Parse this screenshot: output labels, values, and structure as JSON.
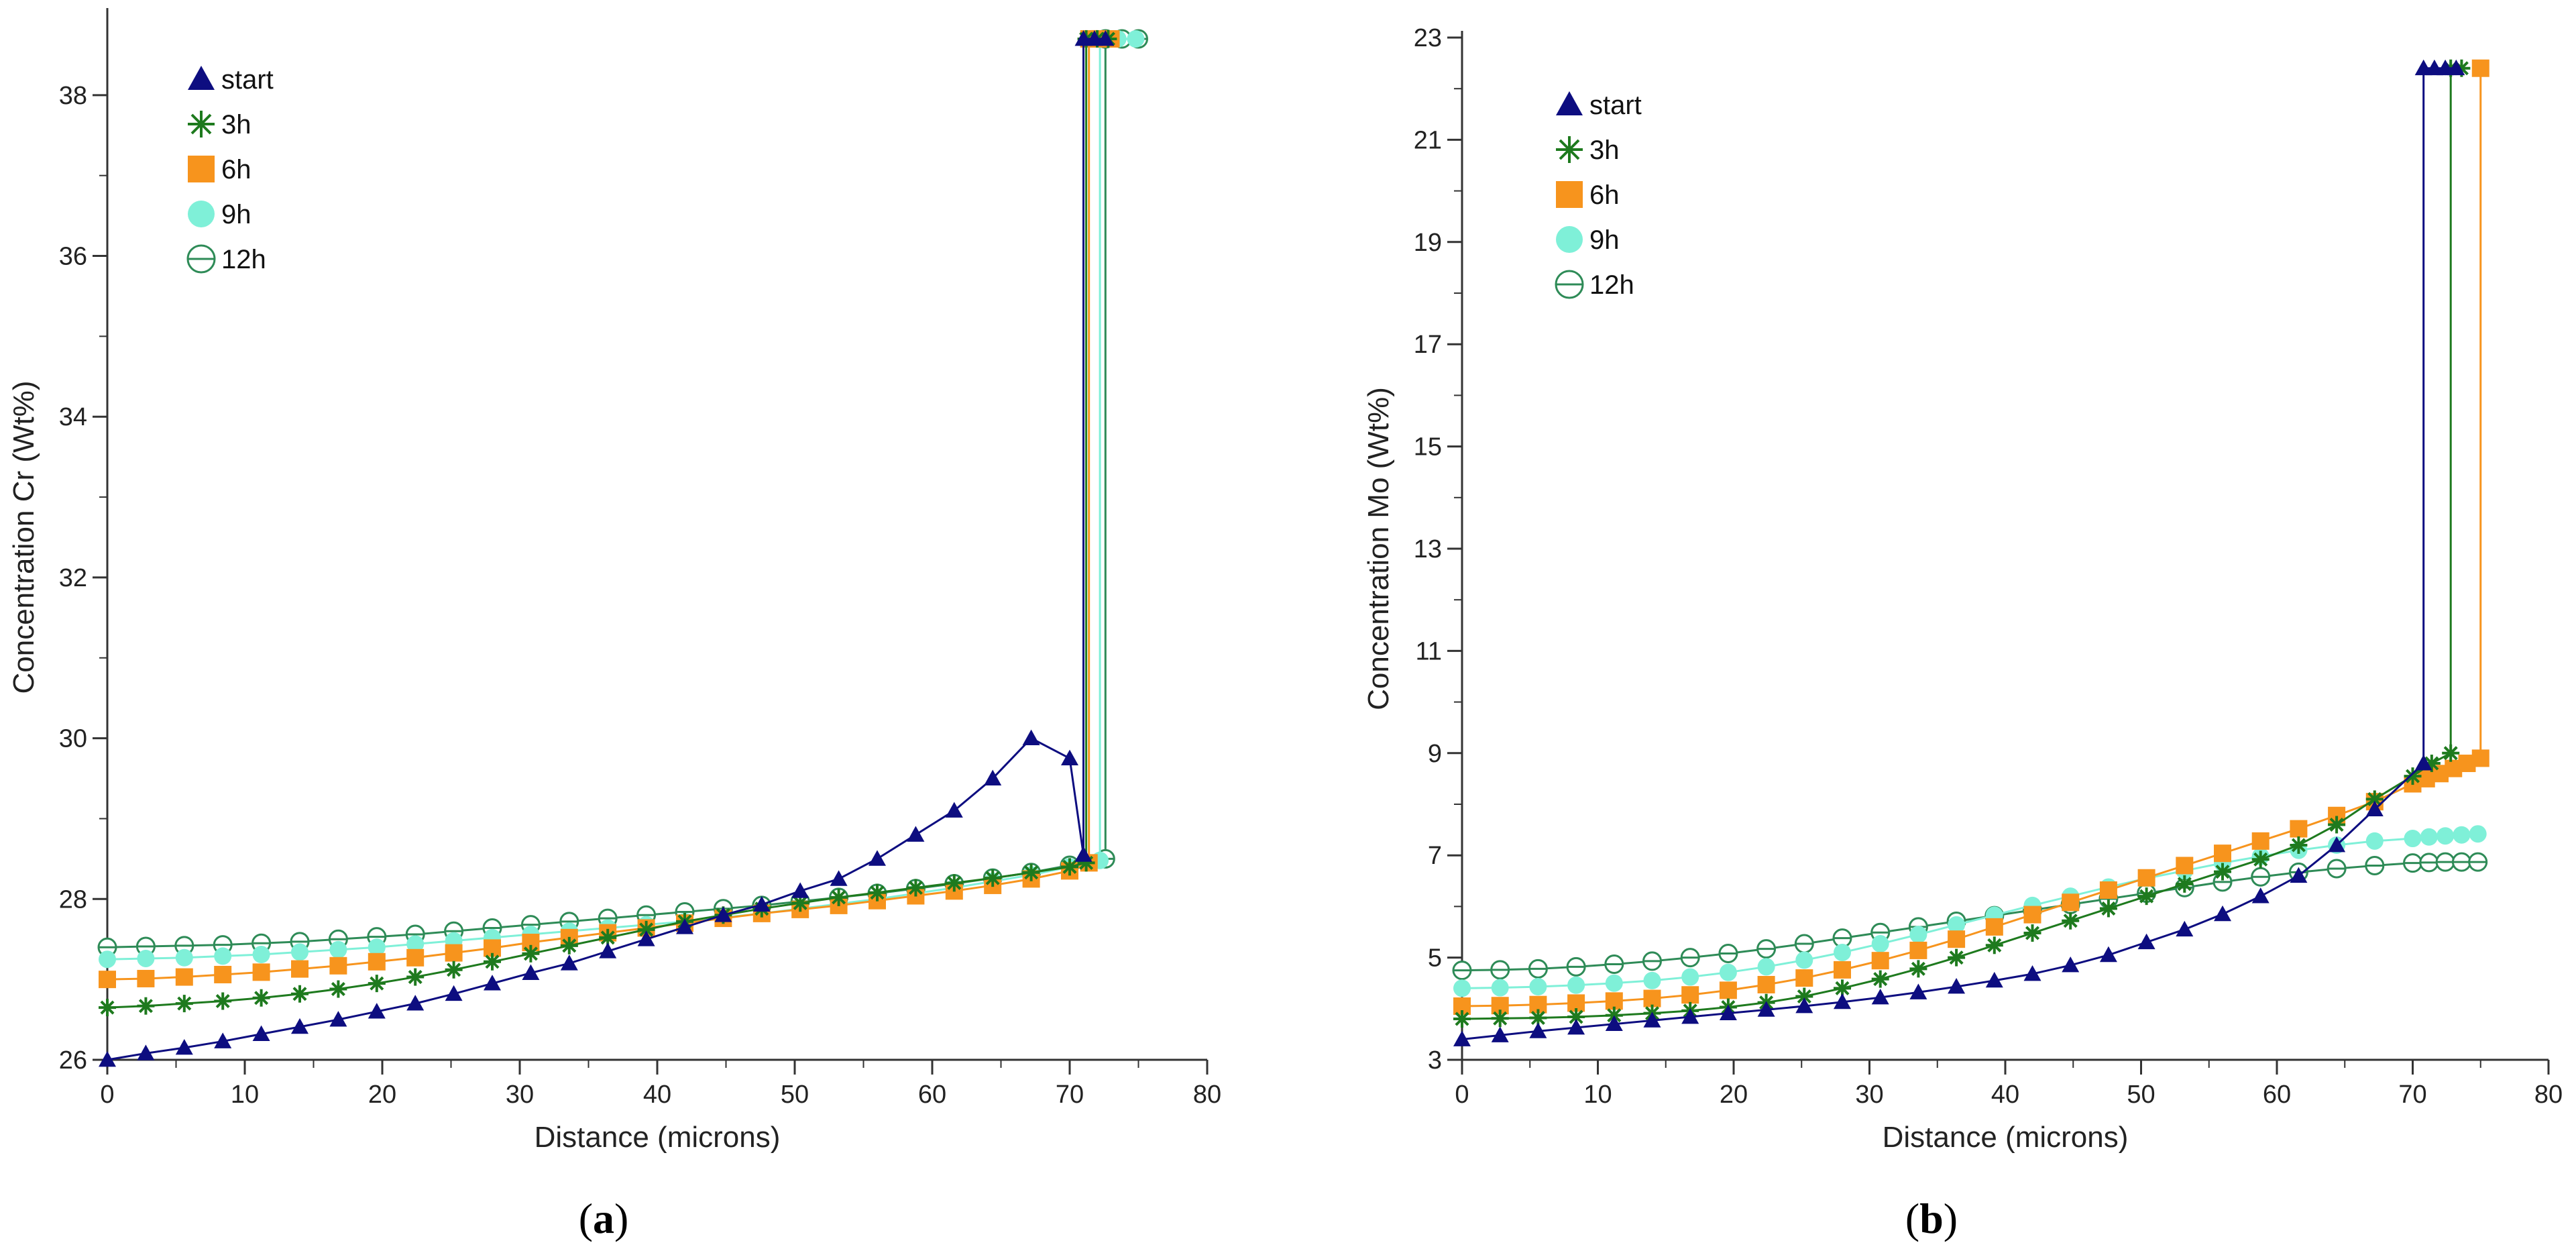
{
  "panels": [
    {
      "caption": "(a)",
      "caption_letter": "a"
    },
    {
      "caption": "(b)",
      "caption_letter": "b"
    }
  ],
  "series_styles": [
    {
      "name": "start",
      "color": "#0d0d80",
      "marker": "triangle"
    },
    {
      "name": "3h",
      "color": "#1e7a1e",
      "marker": "star"
    },
    {
      "name": "6h",
      "color": "#f7941d",
      "marker": "square"
    },
    {
      "name": "9h",
      "color": "#7ff0d8",
      "marker": "circle"
    },
    {
      "name": "12h",
      "color": "#2e8b57",
      "marker": "circle-open"
    }
  ],
  "chart_data": [
    {
      "type": "line",
      "title": "",
      "xlabel": "Distance (microns)",
      "ylabel": "Concentration Cr (Wt%)",
      "xlim": [
        0,
        80
      ],
      "ylim": [
        26,
        39
      ],
      "xticks": [
        0,
        10,
        20,
        30,
        40,
        50,
        60,
        70,
        80
      ],
      "yticks": [
        26,
        28,
        30,
        32,
        34,
        36,
        38
      ],
      "legend_position": "top-left",
      "series": [
        {
          "name": "start",
          "x": [
            0,
            2.8,
            5.6,
            8.4,
            11.2,
            14.0,
            16.8,
            19.6,
            22.4,
            25.2,
            28.0,
            30.8,
            33.6,
            36.4,
            39.2,
            42.0,
            44.8,
            47.6,
            50.4,
            53.2,
            56.0,
            58.8,
            61.6,
            64.4,
            67.2,
            70.0,
            71.0,
            71.0,
            71.8,
            72.6
          ],
          "y": [
            26.0,
            26.08,
            26.15,
            26.23,
            26.32,
            26.41,
            26.5,
            26.6,
            26.7,
            26.82,
            26.95,
            27.08,
            27.2,
            27.35,
            27.5,
            27.65,
            27.8,
            27.93,
            28.1,
            28.25,
            28.5,
            28.8,
            29.1,
            29.5,
            30.0,
            29.75,
            28.55,
            38.7,
            38.7,
            38.7
          ]
        },
        {
          "name": "3h",
          "x": [
            0,
            2.8,
            5.6,
            8.4,
            11.2,
            14.0,
            16.8,
            19.6,
            22.4,
            25.2,
            28.0,
            30.8,
            33.6,
            36.4,
            39.2,
            42.0,
            44.8,
            47.6,
            50.4,
            53.2,
            56.0,
            58.8,
            61.6,
            64.4,
            67.2,
            70.0,
            71.2,
            71.2,
            72.0,
            72.8
          ],
          "y": [
            26.65,
            26.67,
            26.7,
            26.73,
            26.77,
            26.82,
            26.88,
            26.95,
            27.03,
            27.12,
            27.22,
            27.32,
            27.42,
            27.52,
            27.62,
            27.72,
            27.8,
            27.88,
            27.95,
            28.02,
            28.08,
            28.14,
            28.2,
            28.26,
            28.33,
            28.4,
            28.45,
            38.7,
            38.7,
            38.7
          ]
        },
        {
          "name": "6h",
          "x": [
            0,
            2.8,
            5.6,
            8.4,
            11.2,
            14.0,
            16.8,
            19.6,
            22.4,
            25.2,
            28.0,
            30.8,
            33.6,
            36.4,
            39.2,
            42.0,
            44.8,
            47.6,
            50.4,
            53.2,
            56.0,
            58.8,
            61.6,
            64.4,
            67.2,
            70.0,
            71.4,
            71.4,
            72.2,
            73.0
          ],
          "y": [
            27.0,
            27.01,
            27.03,
            27.06,
            27.09,
            27.13,
            27.17,
            27.22,
            27.27,
            27.33,
            27.39,
            27.46,
            27.52,
            27.58,
            27.64,
            27.7,
            27.76,
            27.82,
            27.87,
            27.92,
            27.98,
            28.04,
            28.1,
            28.17,
            28.25,
            28.35,
            28.45,
            38.7,
            38.7,
            38.7
          ]
        },
        {
          "name": "9h",
          "x": [
            0,
            2.8,
            5.6,
            8.4,
            11.2,
            14.0,
            16.8,
            19.6,
            22.4,
            25.2,
            28.0,
            30.8,
            33.6,
            36.4,
            39.2,
            42.0,
            44.8,
            47.6,
            50.4,
            53.2,
            56.0,
            58.8,
            61.6,
            64.4,
            67.2,
            70.0,
            72.2,
            72.2,
            73.5,
            74.8
          ],
          "y": [
            27.25,
            27.26,
            27.27,
            27.29,
            27.31,
            27.34,
            27.37,
            27.4,
            27.44,
            27.48,
            27.52,
            27.56,
            27.6,
            27.64,
            27.68,
            27.72,
            27.77,
            27.82,
            27.88,
            27.94,
            28.0,
            28.07,
            28.14,
            28.22,
            28.3,
            28.4,
            28.48,
            38.7,
            38.7,
            38.7
          ]
        },
        {
          "name": "12h",
          "x": [
            0,
            2.8,
            5.6,
            8.4,
            11.2,
            14.0,
            16.8,
            19.6,
            22.4,
            25.2,
            28.0,
            30.8,
            33.6,
            36.4,
            39.2,
            42.0,
            44.8,
            47.6,
            50.4,
            53.2,
            56.0,
            58.8,
            61.6,
            64.4,
            67.2,
            70.0,
            72.6,
            72.6,
            73.8,
            75.0
          ],
          "y": [
            27.4,
            27.41,
            27.42,
            27.43,
            27.45,
            27.47,
            27.5,
            27.53,
            27.56,
            27.6,
            27.64,
            27.68,
            27.72,
            27.76,
            27.8,
            27.84,
            27.88,
            27.92,
            27.97,
            28.02,
            28.07,
            28.13,
            28.19,
            28.26,
            28.33,
            28.42,
            28.5,
            38.7,
            38.7,
            38.7
          ]
        }
      ]
    },
    {
      "type": "line",
      "title": "",
      "xlabel": "Distance (microns)",
      "ylabel": "Concentration Mo (Wt%)",
      "xlim": [
        0,
        80
      ],
      "ylim": [
        3,
        23
      ],
      "xticks": [
        0,
        10,
        20,
        30,
        40,
        50,
        60,
        70,
        80
      ],
      "yticks": [
        3,
        5,
        7,
        9,
        11,
        13,
        15,
        17,
        19,
        21,
        23
      ],
      "legend_position": "top-left",
      "series": [
        {
          "name": "start",
          "x": [
            0,
            2.8,
            5.6,
            8.4,
            11.2,
            14.0,
            16.8,
            19.6,
            22.4,
            25.2,
            28.0,
            30.8,
            33.6,
            36.4,
            39.2,
            42.0,
            44.8,
            47.6,
            50.4,
            53.2,
            56.0,
            58.8,
            61.6,
            64.4,
            67.2,
            70.8,
            70.8,
            71.6,
            72.4,
            73.2
          ],
          "y": [
            3.4,
            3.48,
            3.56,
            3.63,
            3.7,
            3.77,
            3.84,
            3.91,
            3.98,
            4.05,
            4.13,
            4.22,
            4.32,
            4.43,
            4.55,
            4.68,
            4.85,
            5.05,
            5.3,
            5.55,
            5.85,
            6.2,
            6.6,
            7.2,
            7.9,
            8.8,
            22.4,
            22.4,
            22.4,
            22.4
          ]
        },
        {
          "name": "3h",
          "x": [
            0,
            2.8,
            5.6,
            8.4,
            11.2,
            14.0,
            16.8,
            19.6,
            22.4,
            25.2,
            28.0,
            30.8,
            33.6,
            36.4,
            39.2,
            42.0,
            44.8,
            47.6,
            50.4,
            53.2,
            56.0,
            58.8,
            61.6,
            64.4,
            67.2,
            70.0,
            71.4,
            72.8,
            72.8,
            73.6
          ],
          "y": [
            3.8,
            3.81,
            3.82,
            3.84,
            3.87,
            3.91,
            3.96,
            4.03,
            4.12,
            4.24,
            4.4,
            4.58,
            4.78,
            5.0,
            5.24,
            5.48,
            5.72,
            5.96,
            6.2,
            6.44,
            6.68,
            6.92,
            7.2,
            7.6,
            8.1,
            8.55,
            8.8,
            9.0,
            22.4,
            22.4
          ]
        },
        {
          "name": "6h",
          "x": [
            0,
            2.8,
            5.6,
            8.4,
            11.2,
            14.0,
            16.8,
            19.6,
            22.4,
            25.2,
            28.0,
            30.8,
            33.6,
            36.4,
            39.2,
            42.0,
            44.8,
            47.6,
            50.4,
            53.2,
            56.0,
            58.8,
            61.6,
            64.4,
            67.2,
            70.0,
            71.0,
            72.0,
            73.0,
            74.0,
            75.0,
            75.0
          ],
          "y": [
            4.05,
            4.06,
            4.08,
            4.11,
            4.15,
            4.2,
            4.27,
            4.36,
            4.47,
            4.6,
            4.76,
            4.94,
            5.14,
            5.36,
            5.6,
            5.84,
            6.08,
            6.32,
            6.56,
            6.8,
            7.04,
            7.28,
            7.52,
            7.78,
            8.05,
            8.4,
            8.5,
            8.6,
            8.7,
            8.8,
            8.9,
            22.4
          ]
        },
        {
          "name": "9h",
          "x": [
            0,
            2.8,
            5.6,
            8.4,
            11.2,
            14.0,
            16.8,
            19.6,
            22.4,
            25.2,
            28.0,
            30.8,
            33.6,
            36.4,
            39.2,
            42.0,
            44.8,
            47.6,
            50.4,
            53.2,
            56.0,
            58.8,
            61.6,
            64.4,
            67.2,
            70.0,
            71.2,
            72.4,
            73.6,
            74.8
          ],
          "y": [
            4.4,
            4.41,
            4.43,
            4.46,
            4.5,
            4.55,
            4.62,
            4.71,
            4.82,
            4.95,
            5.1,
            5.27,
            5.45,
            5.64,
            5.83,
            6.02,
            6.2,
            6.38,
            6.55,
            6.7,
            6.85,
            6.98,
            7.1,
            7.2,
            7.28,
            7.33,
            7.36,
            7.38,
            7.4,
            7.42
          ]
        },
        {
          "name": "12h",
          "x": [
            0,
            2.8,
            5.6,
            8.4,
            11.2,
            14.0,
            16.8,
            19.6,
            22.4,
            25.2,
            28.0,
            30.8,
            33.6,
            36.4,
            39.2,
            42.0,
            44.8,
            47.6,
            50.4,
            53.2,
            56.0,
            58.8,
            61.6,
            64.4,
            67.2,
            70.0,
            71.2,
            72.4,
            73.6,
            74.8
          ],
          "y": [
            4.75,
            4.76,
            4.78,
            4.82,
            4.87,
            4.93,
            5.0,
            5.08,
            5.17,
            5.27,
            5.38,
            5.49,
            5.6,
            5.71,
            5.82,
            5.93,
            6.04,
            6.15,
            6.26,
            6.37,
            6.48,
            6.58,
            6.67,
            6.74,
            6.8,
            6.85,
            6.86,
            6.87,
            6.87,
            6.87
          ]
        }
      ]
    }
  ]
}
